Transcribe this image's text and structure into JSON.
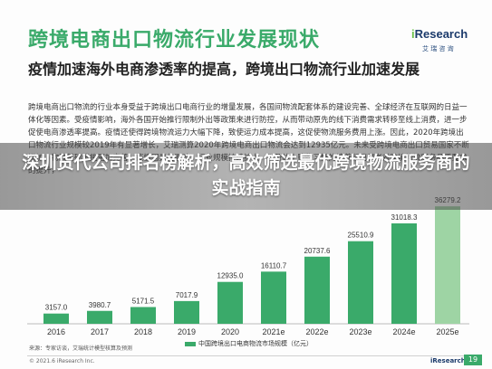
{
  "header": {
    "title": "跨境电商出口物流行业发展现状",
    "logo_brand_i": "i",
    "logo_brand_rest": "Research",
    "logo_sub": "艾 瑞 咨 询",
    "subtitle": "疫情加速海外电商渗透率的提高，跨境出口物流行业加速发展"
  },
  "body_text": "跨境电商出口物流的行业本身受益于跨境出口电商行业的增量发展，各国间物流配套体系的建设完善、全球经济在互联网的日益一体化等因素。受疫情影响，海外各国开始推行限制外出等政策来进行防控，从而带动原先的线下消费需求转移至线上消费，进一步促使电商渗透率提高。疫情还使得跨境物流运力大幅下降，致使运力成本提高，这促使物流服务费用上涨。因此，2020年跨境出口物流行业规模较2019年有显著增长，艾瑞测算2020年跨境电商出口物流会达到12935亿元。未来受跨境电商出口贸易国家不断增加、物流基础设施更加完善、疫情因素的影响，行业规模持续扩大，以及线上购物习惯的培养和消费者对跨境物流服务品质要求的提升，",
  "overlay": {
    "headline": "深圳货代公司排名榜解析，高效筛选最优跨境物流服务商的实战指南"
  },
  "chart_data": {
    "type": "bar",
    "categories": [
      "2016",
      "2017",
      "2018",
      "2019",
      "2020",
      "2021e",
      "2022e",
      "2023e",
      "2024e",
      "2025e"
    ],
    "values": [
      3157.0,
      3980.7,
      5171.5,
      7017.9,
      12935.0,
      16110.7,
      20737.6,
      25510.9,
      31018.3,
      36279.2
    ],
    "value_labels": [
      "3157.0",
      "3980.7",
      "5171.5",
      "7017.9",
      "12935.0",
      "16110.7",
      "20737.6",
      "25510.9",
      "31018.3",
      "36279.2"
    ],
    "series_name": "中国跨境出口电商物流市场规模（亿元）",
    "bar_color": "#3aaa6a",
    "forecast_color": "#9ed4a4",
    "ylim": [
      0,
      38000
    ]
  },
  "footer": {
    "source": "来源：专家访谈，艾瑞统计模型核算及预测",
    "copyright": "© 2021.6 iResearch Inc.",
    "logo": "iResearch",
    "page": "19"
  }
}
